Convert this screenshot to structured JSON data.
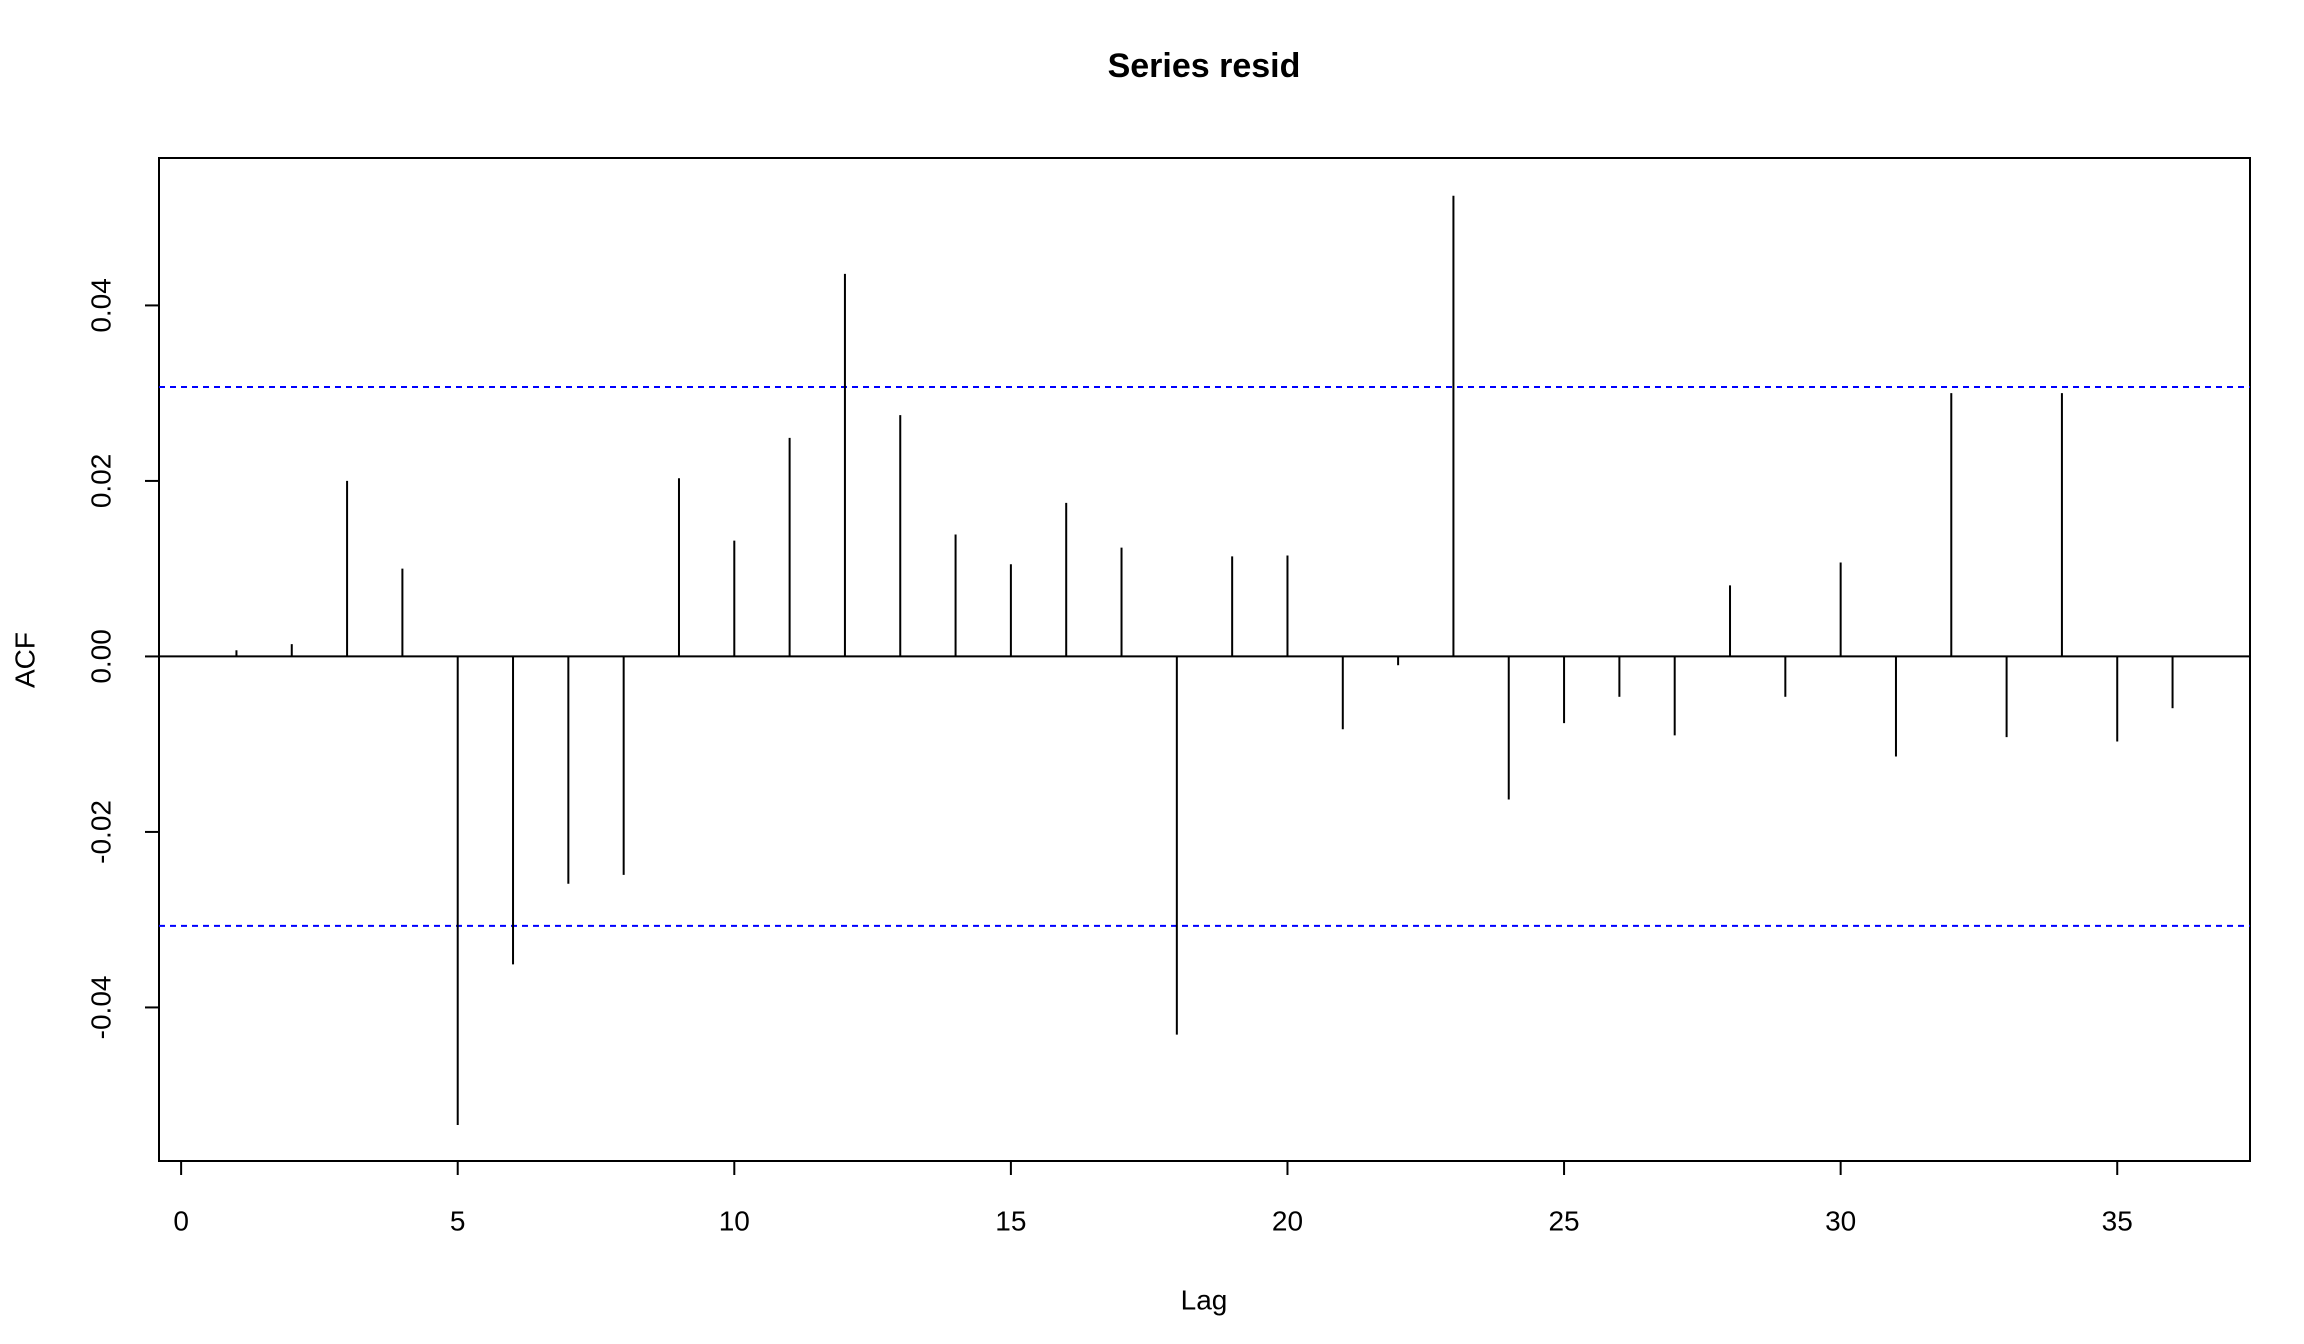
{
  "chart_data": {
    "type": "stem",
    "title": "Series  resid",
    "x_label": "Lag",
    "y_label": "ACF",
    "x": [
      1,
      2,
      3,
      4,
      5,
      6,
      7,
      8,
      9,
      10,
      11,
      12,
      13,
      14,
      15,
      16,
      17,
      18,
      19,
      20,
      21,
      22,
      23,
      24,
      25,
      26,
      27,
      28,
      29,
      30,
      31,
      32,
      33,
      34,
      35,
      36
    ],
    "values": [
      0.0007,
      0.0014,
      0.02,
      0.01,
      -0.0534,
      -0.0351,
      -0.0259,
      -0.0249,
      0.0203,
      0.0132,
      0.0249,
      0.0436,
      0.0275,
      0.0139,
      0.0105,
      0.0175,
      0.0124,
      -0.0431,
      0.0114,
      0.0115,
      -0.0083,
      -0.001,
      0.0525,
      -0.0163,
      -0.0076,
      -0.0046,
      -0.009,
      0.0081,
      -0.0046,
      0.0107,
      -0.0114,
      0.03,
      -0.0092,
      0.03,
      -0.0097,
      -0.0059
    ],
    "color": "#000000",
    "ci": [
      -0.0307,
      0.0307
    ],
    "ci_color": "#0000ff",
    "xlim": [
      -0.4,
      37.4
    ],
    "xticks": [
      0,
      5,
      10,
      15,
      20,
      25,
      30,
      35
    ],
    "ylim": [
      -0.0575,
      0.0568
    ],
    "yticks": [
      -0.04,
      -0.02,
      {
        "value": 0,
        "label": "0.00"
      },
      0.02,
      0.04
    ]
  }
}
